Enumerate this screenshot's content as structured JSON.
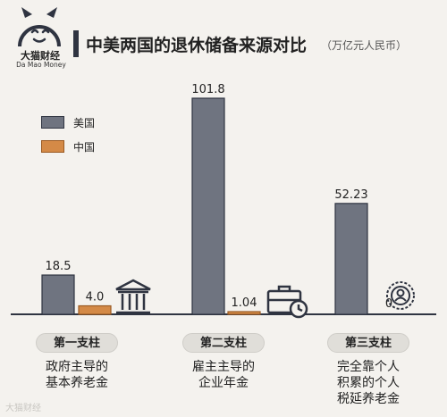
{
  "brand": {
    "name": "大猫财经",
    "sub": "Da Mao Money"
  },
  "title": "中美两国的退休储备来源对比",
  "unit": "（万亿元人民币）",
  "colors": {
    "us": "#6f7480",
    "cn": "#d48a47",
    "dark": "#2f3441"
  },
  "chart_data": {
    "type": "bar",
    "title": "中美两国的退休储备来源对比",
    "unit": "万亿元人民币",
    "categories": [
      "第一支柱",
      "第二支柱",
      "第三支柱"
    ],
    "series": [
      {
        "name": "美国",
        "values": [
          18.5,
          101.8,
          52.23
        ]
      },
      {
        "name": "中国",
        "values": [
          4.0,
          1.04,
          0
        ]
      }
    ],
    "data_labels": [
      [
        "18.5",
        "4.0"
      ],
      [
        "101.8",
        "1.04"
      ],
      [
        "52.23",
        "0"
      ]
    ],
    "legend": "top-left",
    "grid": false
  },
  "pillars": [
    {
      "label": "第一支柱",
      "desc": "政府主导的\n基本养老金",
      "icon": "government-building-icon"
    },
    {
      "label": "第二支柱",
      "desc": "雇主主导的\n企业年金",
      "icon": "briefcase-clock-icon"
    },
    {
      "label": "第三支柱",
      "desc": "完全靠个人\n积累的个人\n税延养老金",
      "icon": "person-badge-icon"
    }
  ],
  "watermark": "大猫财经"
}
